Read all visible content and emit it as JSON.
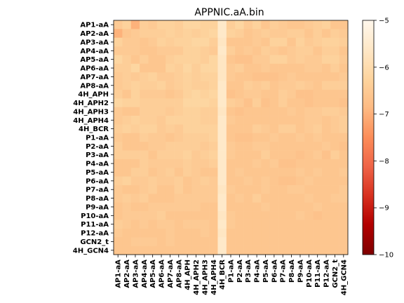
{
  "chart_data": {
    "type": "heatmap",
    "title": "APPNIC.aA.bin",
    "labels": [
      "AP1-aA",
      "AP2-aA",
      "AP3-aA",
      "AP4-aA",
      "AP5-aA",
      "AP6-aA",
      "AP7-aA",
      "AP8-aA",
      "4H_APH",
      "4H_APH2",
      "4H_APH3",
      "4H_APH4",
      "4H_BCR",
      "P1-aA",
      "P2-aA",
      "P3-aA",
      "P4-aA",
      "P5-aA",
      "P6-aA",
      "P7-aA",
      "P8-aA",
      "P9-aA",
      "P10-aA",
      "P11-aA",
      "P12-aA",
      "GCN2_t",
      "4H_GCN4"
    ],
    "colorbar": {
      "min": -10,
      "max": -5,
      "ticks": [
        -5,
        -6,
        -7,
        -8,
        -9,
        -10
      ],
      "colormap": "OrRd_r"
    },
    "matrix": [
      [
        -6.5,
        -6.3,
        -7.0,
        -6.4,
        -6.5,
        -6.3,
        -6.3,
        -6.4,
        -6.2,
        -6.2,
        -6.3,
        -6.3,
        -5.6,
        -6.4,
        -6.2,
        -6.5,
        -6.3,
        -6.6,
        -6.4,
        -6.5,
        -6.6,
        -6.6,
        -6.5,
        -6.4,
        -6.3,
        -6.6,
        -6.6
      ],
      [
        -7.0,
        -6.6,
        -6.5,
        -6.4,
        -6.4,
        -6.4,
        -6.3,
        -6.4,
        -6.3,
        -6.4,
        -6.3,
        -6.2,
        -5.6,
        -6.3,
        -6.4,
        -6.6,
        -6.5,
        -6.4,
        -6.5,
        -6.5,
        -6.4,
        -6.4,
        -6.6,
        -6.4,
        -6.6,
        -6.4,
        -6.5
      ],
      [
        -6.3,
        -6.5,
        -6.5,
        -6.6,
        -6.5,
        -6.3,
        -6.4,
        -6.3,
        -6.3,
        -6.2,
        -6.2,
        -6.4,
        -5.7,
        -6.6,
        -6.6,
        -6.6,
        -6.5,
        -6.6,
        -6.3,
        -6.3,
        -6.6,
        -6.3,
        -6.5,
        -6.4,
        -6.3,
        -6.3,
        -6.4
      ],
      [
        -6.5,
        -6.5,
        -6.5,
        -6.6,
        -6.6,
        -6.5,
        -6.5,
        -6.5,
        -6.3,
        -6.3,
        -6.4,
        -6.5,
        -5.6,
        -6.4,
        -6.6,
        -6.5,
        -6.6,
        -6.4,
        -6.5,
        -6.6,
        -6.5,
        -6.4,
        -6.4,
        -6.6,
        -6.4,
        -6.4,
        -6.6
      ],
      [
        -6.2,
        -6.4,
        -6.6,
        -6.4,
        -6.6,
        -6.6,
        -6.4,
        -6.3,
        -6.3,
        -6.3,
        -6.4,
        -6.2,
        -5.7,
        -6.6,
        -6.7,
        -6.7,
        -6.5,
        -6.5,
        -6.3,
        -6.3,
        -6.5,
        -6.4,
        -6.5,
        -6.5,
        -6.3,
        -6.3,
        -6.5
      ],
      [
        -6.4,
        -6.4,
        -6.2,
        -6.6,
        -6.6,
        -6.6,
        -6.3,
        -6.4,
        -6.2,
        -6.4,
        -6.2,
        -6.2,
        -5.7,
        -6.5,
        -6.4,
        -6.6,
        -6.6,
        -6.5,
        -6.6,
        -6.6,
        -6.6,
        -6.6,
        -6.5,
        -6.5,
        -6.6,
        -6.4,
        -6.6
      ],
      [
        -6.5,
        -6.4,
        -6.5,
        -6.4,
        -6.3,
        -6.5,
        -6.5,
        -6.4,
        -6.3,
        -6.4,
        -6.3,
        -6.3,
        -5.7,
        -6.5,
        -6.6,
        -6.6,
        -6.7,
        -6.7,
        -6.7,
        -6.6,
        -6.5,
        -6.6,
        -6.6,
        -6.6,
        -6.6,
        -6.6,
        -6.5
      ],
      [
        -6.5,
        -6.4,
        -6.3,
        -6.4,
        -6.4,
        -6.3,
        -6.5,
        -6.4,
        -6.3,
        -6.4,
        -6.4,
        -6.3,
        -5.6,
        -6.6,
        -6.6,
        -6.4,
        -6.5,
        -6.4,
        -6.6,
        -6.5,
        -6.5,
        -6.4,
        -6.5,
        -6.6,
        -6.4,
        -6.4,
        -6.4
      ],
      [
        -6.4,
        -6.6,
        -6.3,
        -6.5,
        -6.5,
        -6.5,
        -6.6,
        -6.5,
        -6.3,
        -6.2,
        -6.3,
        -6.2,
        -5.6,
        -6.7,
        -6.6,
        -6.5,
        -6.5,
        -6.6,
        -6.6,
        -6.4,
        -6.5,
        -6.7,
        -6.7,
        -6.6,
        -6.6,
        -6.6,
        -6.6
      ],
      [
        -6.2,
        -6.3,
        -6.3,
        -6.4,
        -6.4,
        -6.4,
        -6.4,
        -6.4,
        -6.2,
        -6.2,
        -6.2,
        -6.3,
        -5.6,
        -6.4,
        -6.5,
        -6.7,
        -6.4,
        -6.7,
        -6.6,
        -6.4,
        -6.6,
        -6.6,
        -6.7,
        -6.6,
        -6.6,
        -6.6,
        -6.7
      ],
      [
        -6.5,
        -6.6,
        -6.6,
        -6.4,
        -6.4,
        -6.4,
        -6.5,
        -6.4,
        -6.3,
        -6.3,
        -6.4,
        -6.4,
        -5.7,
        -6.6,
        -6.7,
        -6.6,
        -6.6,
        -6.6,
        -6.6,
        -6.6,
        -6.5,
        -6.6,
        -6.5,
        -6.5,
        -6.4,
        -6.4,
        -6.5
      ],
      [
        -6.5,
        -6.4,
        -6.3,
        -6.4,
        -6.4,
        -6.5,
        -6.3,
        -6.3,
        -6.3,
        -6.3,
        -6.4,
        -6.4,
        -5.6,
        -6.5,
        -6.6,
        -6.6,
        -6.6,
        -6.6,
        -6.6,
        -6.6,
        -6.6,
        -6.6,
        -6.5,
        -6.5,
        -6.6,
        -6.5,
        -6.4
      ],
      [
        -6.4,
        -6.3,
        -6.4,
        -6.3,
        -6.3,
        -6.5,
        -6.4,
        -6.5,
        -6.3,
        -6.3,
        -6.3,
        -6.3,
        -5.6,
        -6.6,
        -6.6,
        -6.6,
        -6.4,
        -6.5,
        -6.6,
        -6.4,
        -6.4,
        -6.6,
        -6.5,
        -6.4,
        -6.6,
        -6.5,
        -6.4
      ],
      [
        -6.5,
        -6.6,
        -6.6,
        -6.4,
        -6.5,
        -6.5,
        -6.6,
        -6.5,
        -6.4,
        -6.4,
        -6.4,
        -6.3,
        -5.6,
        -6.6,
        -6.7,
        -6.7,
        -6.6,
        -6.6,
        -6.5,
        -6.6,
        -6.6,
        -6.5,
        -6.6,
        -6.5,
        -6.6,
        -6.6,
        -6.6
      ],
      [
        -6.4,
        -6.6,
        -6.6,
        -6.6,
        -6.5,
        -6.5,
        -6.4,
        -6.4,
        -6.4,
        -6.4,
        -6.5,
        -6.4,
        -5.6,
        -6.5,
        -6.6,
        -6.6,
        -6.5,
        -6.5,
        -6.6,
        -6.6,
        -6.6,
        -6.6,
        -6.6,
        -6.6,
        -6.5,
        -6.6,
        -6.7
      ],
      [
        -6.4,
        -6.4,
        -6.4,
        -6.4,
        -6.6,
        -6.4,
        -6.4,
        -6.4,
        -6.3,
        -6.5,
        -6.4,
        -6.3,
        -5.6,
        -6.5,
        -6.6,
        -6.6,
        -6.6,
        -6.4,
        -6.6,
        -6.6,
        -6.6,
        -6.7,
        -6.6,
        -6.5,
        -6.7,
        -6.4,
        -6.6
      ],
      [
        -6.6,
        -6.6,
        -6.6,
        -6.4,
        -6.5,
        -6.5,
        -6.5,
        -6.5,
        -6.4,
        -6.5,
        -6.5,
        -6.4,
        -5.6,
        -6.6,
        -6.6,
        -6.6,
        -6.5,
        -6.6,
        -6.5,
        -6.7,
        -6.7,
        -6.6,
        -6.6,
        -6.6,
        -6.6,
        -6.6,
        -6.6
      ],
      [
        -6.6,
        -6.6,
        -6.4,
        -6.4,
        -6.6,
        -6.5,
        -6.4,
        -6.6,
        -6.4,
        -6.5,
        -6.6,
        -6.6,
        -5.6,
        -6.6,
        -6.5,
        -6.6,
        -6.6,
        -6.6,
        -6.6,
        -6.6,
        -6.6,
        -6.5,
        -6.6,
        -6.5,
        -6.6,
        -6.6,
        -6.5
      ],
      [
        -6.4,
        -6.3,
        -6.5,
        -6.5,
        -6.4,
        -6.5,
        -6.5,
        -6.4,
        -6.6,
        -6.5,
        -6.4,
        -6.5,
        -5.6,
        -6.6,
        -6.6,
        -6.5,
        -6.6,
        -6.5,
        -6.6,
        -6.7,
        -6.7,
        -6.6,
        -6.5,
        -6.6,
        -6.6,
        -6.6,
        -6.6
      ],
      [
        -6.5,
        -6.6,
        -6.6,
        -6.5,
        -6.4,
        -6.6,
        -6.6,
        -6.4,
        -6.6,
        -6.5,
        -6.5,
        -6.5,
        -5.7,
        -6.5,
        -6.6,
        -6.6,
        -6.6,
        -6.5,
        -6.6,
        -6.6,
        -6.5,
        -6.5,
        -6.6,
        -6.6,
        -6.6,
        -6.6,
        -6.5
      ],
      [
        -6.5,
        -6.4,
        -6.5,
        -6.4,
        -6.6,
        -6.6,
        -6.6,
        -6.5,
        -6.5,
        -6.5,
        -6.5,
        -6.5,
        -5.6,
        -6.6,
        -6.5,
        -6.6,
        -6.4,
        -6.6,
        -6.6,
        -6.6,
        -6.6,
        -6.6,
        -6.5,
        -6.6,
        -6.6,
        -6.5,
        -6.5
      ],
      [
        -6.6,
        -6.5,
        -6.6,
        -6.6,
        -6.5,
        -6.5,
        -6.5,
        -6.5,
        -6.5,
        -6.5,
        -6.6,
        -6.6,
        -5.6,
        -6.6,
        -6.6,
        -6.6,
        -6.6,
        -6.5,
        -6.6,
        -6.6,
        -6.6,
        -6.6,
        -6.6,
        -6.5,
        -6.6,
        -6.6,
        -6.6
      ],
      [
        -6.6,
        -6.5,
        -6.5,
        -6.5,
        -6.5,
        -6.4,
        -6.6,
        -6.6,
        -6.6,
        -6.6,
        -6.6,
        -6.6,
        -5.7,
        -6.5,
        -6.6,
        -6.6,
        -6.6,
        -6.6,
        -6.6,
        -6.6,
        -6.6,
        -6.5,
        -6.6,
        -6.7,
        -6.6,
        -6.6,
        -6.6
      ],
      [
        -6.4,
        -6.5,
        -6.6,
        -6.5,
        -6.6,
        -6.5,
        -6.5,
        -6.6,
        -6.5,
        -6.5,
        -6.5,
        -6.6,
        -5.6,
        -6.5,
        -6.6,
        -6.6,
        -6.6,
        -6.6,
        -6.6,
        -6.6,
        -6.6,
        -6.6,
        -6.6,
        -6.6,
        -6.6,
        -6.6,
        -6.6
      ],
      [
        -6.5,
        -6.6,
        -6.6,
        -6.6,
        -6.6,
        -6.6,
        -6.5,
        -6.6,
        -6.6,
        -6.6,
        -6.5,
        -6.6,
        -5.7,
        -6.6,
        -6.6,
        -6.6,
        -6.6,
        -6.6,
        -6.6,
        -6.6,
        -6.6,
        -6.6,
        -6.6,
        -6.6,
        -6.6,
        -6.6,
        -6.6
      ],
      [
        -6.6,
        -6.6,
        -6.5,
        -6.5,
        -6.5,
        -6.6,
        -6.5,
        -6.6,
        -6.6,
        -6.6,
        -6.6,
        -6.6,
        -5.6,
        -6.6,
        -6.6,
        -6.6,
        -6.6,
        -6.6,
        -6.6,
        -6.6,
        -6.6,
        -6.6,
        -6.6,
        -6.6,
        -6.6,
        -6.6,
        -6.6
      ],
      [
        -6.6,
        -6.6,
        -6.6,
        -6.6,
        -6.6,
        -6.6,
        -6.6,
        -6.6,
        -6.6,
        -6.6,
        -6.6,
        -6.6,
        -5.6,
        -6.6,
        -6.6,
        -6.6,
        -6.6,
        -6.6,
        -6.6,
        -6.6,
        -6.6,
        -6.6,
        -6.6,
        -6.6,
        -6.6,
        -6.6,
        -6.6
      ]
    ]
  }
}
